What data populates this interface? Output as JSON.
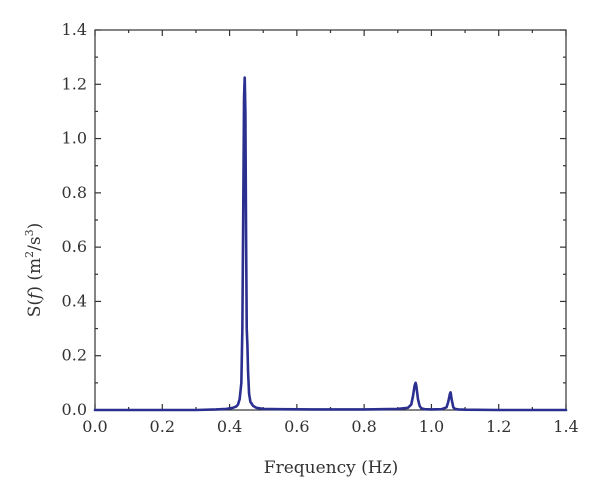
{
  "chart_data": {
    "type": "line",
    "title": "",
    "xlabel": "Frequency (Hz)",
    "ylabel": {
      "s": "S(",
      "f": "f",
      "close": ") (m",
      "exp1": "2",
      "slash": "/s",
      "exp2": "3",
      "end": ")"
    },
    "xlim": [
      0.0,
      1.4
    ],
    "ylim": [
      0.0,
      1.4
    ],
    "xticks": [
      "0.0",
      "0.2",
      "0.4",
      "0.6",
      "0.8",
      "1.0",
      "1.2",
      "1.4"
    ],
    "yticks": [
      "0.0",
      "0.2",
      "0.4",
      "0.6",
      "0.8",
      "1.0",
      "1.2",
      "1.4"
    ],
    "grid": false,
    "legend": "none",
    "series": [
      {
        "color": "#2b2f8f",
        "x": [
          0.0,
          0.2,
          0.3,
          0.36,
          0.39,
          0.41,
          0.42,
          0.425,
          0.43,
          0.435,
          0.438,
          0.441,
          0.443,
          0.445,
          0.447,
          0.449,
          0.451,
          0.453,
          0.455,
          0.458,
          0.462,
          0.47,
          0.48,
          0.5,
          0.55,
          0.65,
          0.8,
          0.9,
          0.93,
          0.94,
          0.945,
          0.95,
          0.953,
          0.955,
          0.957,
          0.96,
          0.965,
          0.97,
          0.98,
          1.0,
          1.03,
          1.045,
          1.05,
          1.055,
          1.057,
          1.06,
          1.065,
          1.07,
          1.08,
          1.1,
          1.2,
          1.3,
          1.4
        ],
        "y": [
          0.0,
          0.0,
          0.0,
          0.002,
          0.004,
          0.008,
          0.013,
          0.02,
          0.04,
          0.1,
          0.3,
          0.8,
          1.15,
          1.225,
          1.1,
          0.65,
          0.3,
          0.24,
          0.14,
          0.06,
          0.03,
          0.015,
          0.008,
          0.004,
          0.003,
          0.002,
          0.002,
          0.004,
          0.008,
          0.02,
          0.05,
          0.09,
          0.1,
          0.09,
          0.07,
          0.04,
          0.015,
          0.006,
          0.003,
          0.002,
          0.003,
          0.01,
          0.03,
          0.06,
          0.065,
          0.04,
          0.01,
          0.004,
          0.002,
          0.001,
          0.0,
          0.0,
          0.0
        ]
      }
    ]
  }
}
